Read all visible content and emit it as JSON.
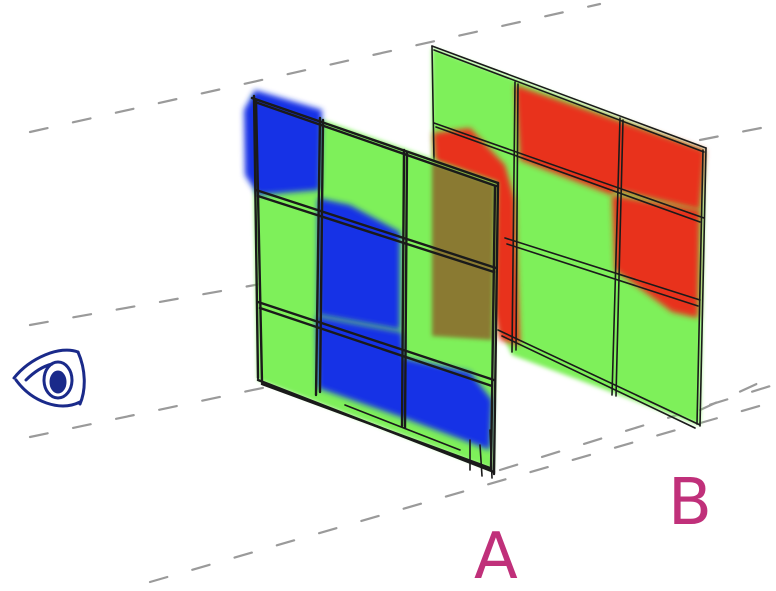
{
  "labels": {
    "front_plane": "A",
    "back_plane": "B"
  },
  "colors": {
    "green": "#7ef05a",
    "blue": "#1432e6",
    "red": "#e8301c",
    "overlap": "#8a7a30",
    "label": "#c0307a",
    "eye": "#1a2a8a",
    "dash": "#9a9a9a"
  },
  "icons": {
    "viewer": "eye-icon"
  }
}
